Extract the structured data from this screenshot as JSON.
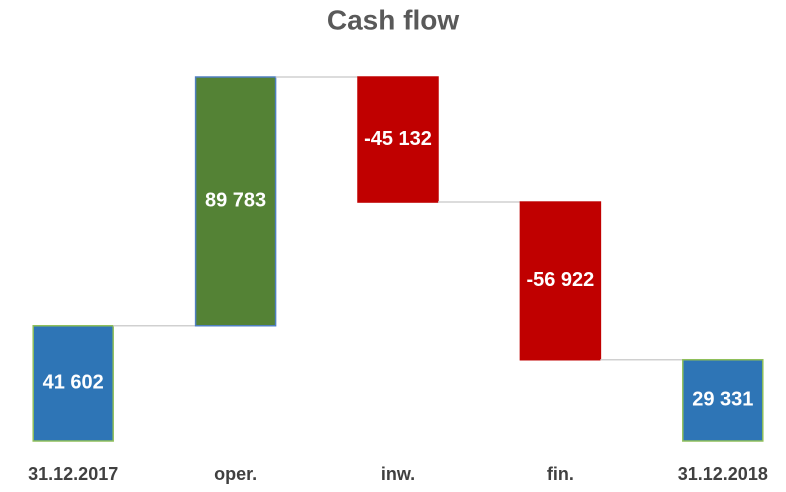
{
  "chart_data": {
    "type": "waterfall",
    "title": "Cash flow",
    "categories": [
      "31.12.2017",
      "oper.",
      "inw.",
      "fin.",
      "31.12.2018"
    ],
    "values": [
      41602,
      89783,
      -45132,
      -56922,
      29331
    ],
    "value_labels": [
      "41 602",
      "89 783",
      "-45 132",
      "-56 922",
      "29 331"
    ],
    "is_total": [
      true,
      false,
      false,
      false,
      true
    ],
    "colors": [
      "#2e75b6",
      "#548235",
      "#c00000",
      "#c00000",
      "#2e75b6"
    ],
    "ylim": [
      0,
      135000
    ],
    "grid": false
  }
}
